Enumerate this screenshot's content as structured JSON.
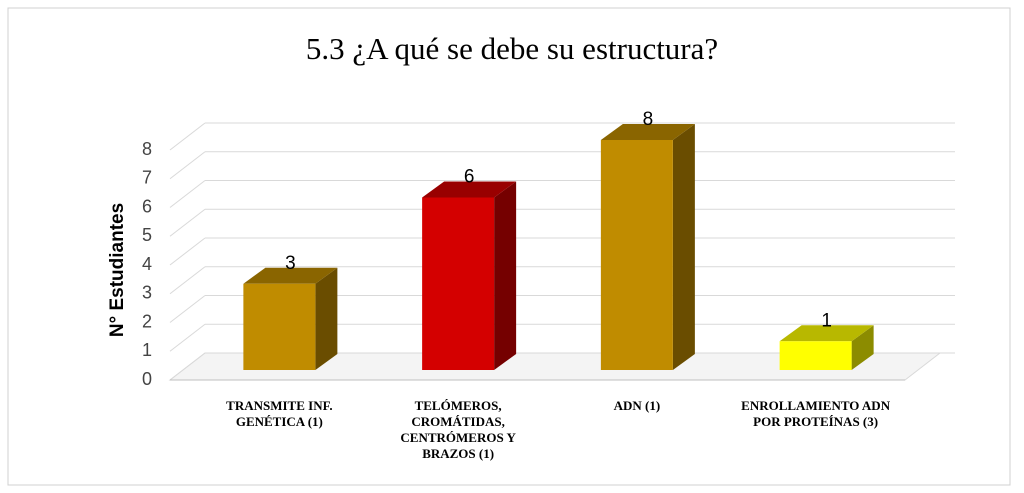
{
  "chart_data": {
    "type": "bar3d",
    "title": "5.3 ¿A qué se debe su estructura?",
    "y_label": "N° Estudiantes",
    "categories": [
      "TRANSMITE INF. GENÉTICA (1)",
      "TELÓMEROS, CROMÁTIDAS, CENTRÓMEROS Y BRAZOS (1)",
      "ADN (1)",
      "ENROLLAMIENTO ADN POR PROTEÍNAS (3)"
    ],
    "values": [
      3,
      6,
      8,
      1
    ],
    "colors": [
      "#c08c00",
      "#d40000",
      "#c08c00",
      "#ffff00"
    ],
    "ylim": [
      0,
      8
    ],
    "yticks": [
      0,
      1,
      2,
      3,
      4,
      5,
      6,
      7,
      8
    ],
    "grid": true
  }
}
